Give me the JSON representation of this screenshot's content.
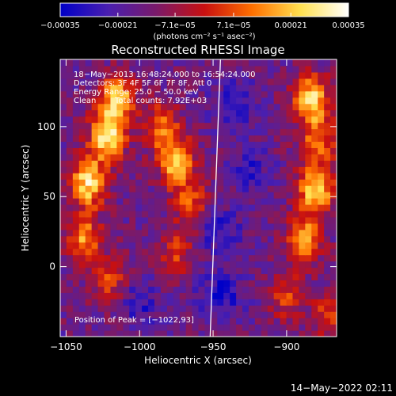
{
  "chart_data": {
    "type": "heatmap",
    "title": "Reconstructed RHESSI Image",
    "xlabel": "Heliocentric X (arcsec)",
    "ylabel": "Heliocentric Y (arcsec)",
    "xlim": [
      -1054,
      -866
    ],
    "ylim": [
      -50,
      148
    ],
    "x_ticks": [
      -1050,
      -1000,
      -950,
      -900
    ],
    "x_tick_labels": [
      "−1050",
      "−1000",
      "−950",
      "−900"
    ],
    "y_ticks": [
      0,
      50,
      100
    ],
    "y_tick_labels": [
      "0",
      "50",
      "100"
    ],
    "colorbar": {
      "range": [
        -0.00035,
        0.00035
      ],
      "ticks": [
        -0.00035,
        -0.00021,
        -7.1e-05,
        7.1e-05,
        0.00021,
        0.00035
      ],
      "tick_labels": [
        "−0.00035",
        "−0.00021",
        "−7.1e−05",
        "7.1e−05",
        "0.00021",
        "0.00035"
      ],
      "colors": [
        "#0000c8",
        "#4a1fb0",
        "#7a1a6a",
        "#c81010",
        "#ff7000",
        "#ffe050",
        "#ffffff"
      ],
      "units_label": "(photons cm⁻² s⁻¹ asec⁻²)"
    },
    "limb_line": {
      "x_at_ymin": -952,
      "x_at_ymax": -945
    },
    "annotations": [
      "18−May−2013 16:48:24.000 to 16:54:24.000",
      "Detectors: 3F 4F 5F 6F 7F 8F, Att 0",
      "Energy Range: 25.0 − 50.0 keV",
      "Clean",
      "Total counts: 7.92E+03"
    ],
    "peak_label": "Position of Peak = [−1022,93]",
    "footer": "14−May−2022 02:11",
    "grid": "off",
    "bright_regions": [
      {
        "x": -1022,
        "y": 93,
        "level": 1.0
      },
      {
        "x": -1035,
        "y": 60,
        "level": 0.95
      },
      {
        "x": -1015,
        "y": 120,
        "level": 0.85
      },
      {
        "x": -1038,
        "y": 20,
        "level": 0.7
      },
      {
        "x": -1020,
        "y": -10,
        "level": 0.45
      },
      {
        "x": -975,
        "y": 75,
        "level": 0.85
      },
      {
        "x": -985,
        "y": 100,
        "level": 0.6
      },
      {
        "x": -965,
        "y": 45,
        "level": 0.5
      },
      {
        "x": -975,
        "y": 10,
        "level": 0.4
      },
      {
        "x": -880,
        "y": 55,
        "level": 0.95
      },
      {
        "x": -883,
        "y": 120,
        "level": 0.9
      },
      {
        "x": -878,
        "y": 90,
        "level": 0.6
      },
      {
        "x": -888,
        "y": 20,
        "level": 0.7
      },
      {
        "x": -900,
        "y": -20,
        "level": 0.45
      },
      {
        "x": -870,
        "y": -35,
        "level": 0.5
      }
    ],
    "dark_regions": [
      {
        "x": -935,
        "y": 115,
        "level": 0.6
      },
      {
        "x": -945,
        "y": 25,
        "level": 0.55
      },
      {
        "x": -1000,
        "y": -25,
        "level": 0.5
      },
      {
        "x": -945,
        "y": -20,
        "level": 0.7
      },
      {
        "x": -925,
        "y": 70,
        "level": 0.45
      }
    ]
  }
}
